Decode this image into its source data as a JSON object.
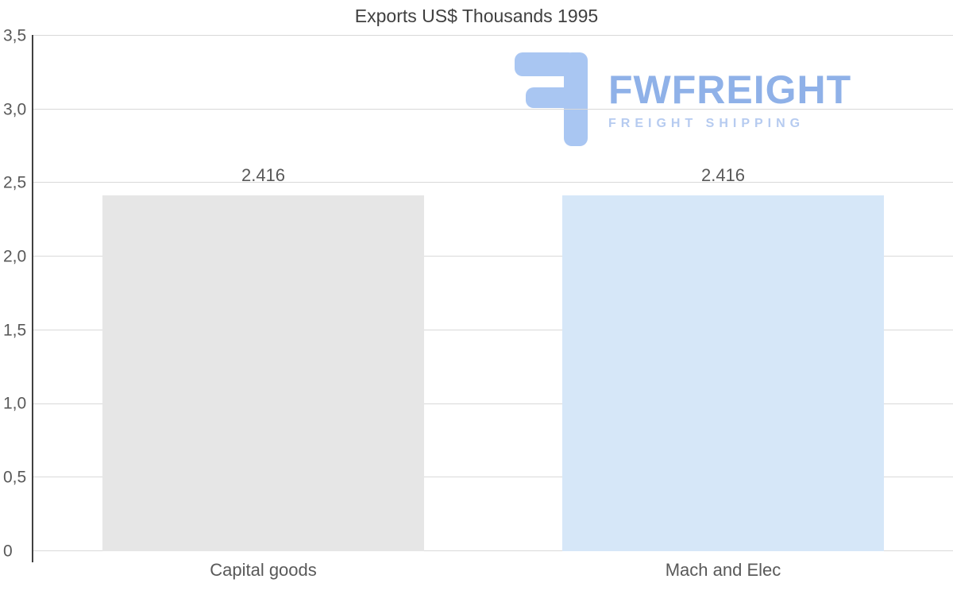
{
  "title": "Exports US$ Thousands 1995",
  "logo": {
    "name": "FWFREIGHT",
    "tagline": "FREIGHT SHIPPING",
    "icon": "fwfreight-f-icon",
    "color_primary": "#8fb1e8",
    "color_light": "#b6cbf0",
    "icon_color": "#a9c6f2"
  },
  "chart_data": {
    "type": "bar",
    "title": "Exports US$ Thousands 1995",
    "categories": [
      "Capital goods",
      "Mach and Elec"
    ],
    "values": [
      2.416,
      2.416
    ],
    "value_labels": [
      "2.416",
      "2.416"
    ],
    "series": [
      {
        "name": "Exports US$ Thousands 1995",
        "values": [
          2.416,
          2.416
        ]
      }
    ],
    "xlabel": "",
    "ylabel": "",
    "ylim": [
      0,
      3.5
    ],
    "ytick_step": 0.5,
    "ytick_labels": [
      "0",
      "0,5",
      "1,0",
      "1,5",
      "2,0",
      "2,5",
      "3,0",
      "3,5"
    ],
    "grid": true,
    "legend": false,
    "bar_colors": [
      "#e6e6e6",
      "#d6e7f8"
    ],
    "label_color": "#595959",
    "title_color": "#404040",
    "gridline_color": "#d9d9d9",
    "axis_color": "#404040",
    "background": "#ffffff"
  }
}
